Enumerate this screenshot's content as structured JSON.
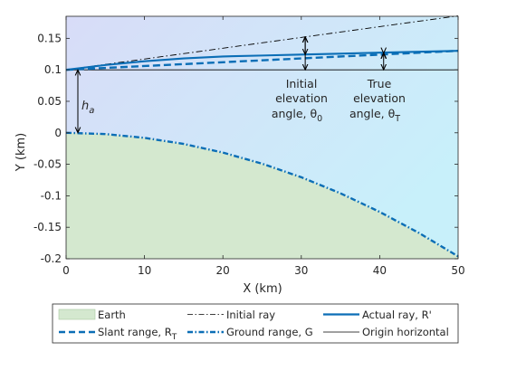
{
  "chart_data": {
    "type": "line",
    "xlabel": "X (km)",
    "ylabel": "Y (km)",
    "xlim": [
      0,
      50
    ],
    "ylim": [
      -0.2,
      0.185
    ],
    "xticks": [
      "0",
      "10",
      "20",
      "30",
      "40",
      "50"
    ],
    "yticks": [
      "0.15",
      "0.1",
      "0.05",
      "0",
      "-0.05",
      "-0.1",
      "-0.15",
      "-0.2"
    ],
    "grid": false,
    "background_gradient": [
      "#d8dcf8",
      "#c8f0fa"
    ],
    "series": [
      {
        "name": "Earth",
        "style": "filled-area",
        "color": "#d4e8cf",
        "x": [
          0,
          5,
          10,
          15,
          20,
          25,
          30,
          35,
          40,
          45,
          50
        ],
        "y": [
          0,
          -0.002,
          -0.008,
          -0.0177,
          -0.0314,
          -0.049,
          -0.0706,
          -0.0961,
          -0.1256,
          -0.159,
          -0.1962
        ]
      },
      {
        "name": "Initial ray",
        "style": "dash-dot",
        "color": "#000000",
        "x": [
          0,
          50
        ],
        "y": [
          0.1,
          0.1857
        ]
      },
      {
        "name": "Actual ray, R'",
        "style": "solid-thick",
        "color": "#0b6eb6",
        "x": [
          0,
          5,
          10,
          15,
          20,
          25,
          30,
          35,
          40,
          45,
          50
        ],
        "y": [
          0.1,
          0.1076,
          0.1136,
          0.1181,
          0.1212,
          0.1227,
          0.1242,
          0.1257,
          0.1272,
          0.1287,
          0.1302
        ]
      },
      {
        "name": "Slant range, R_T",
        "style": "dashed-thick",
        "color": "#0b6eb6",
        "x": [
          0,
          50
        ],
        "y": [
          0.1,
          0.1302
        ]
      },
      {
        "name": "Ground range, G",
        "style": "dash-dot-thick",
        "color": "#0b6eb6",
        "x": [
          0,
          5,
          10,
          15,
          20,
          25,
          30,
          35,
          40,
          45,
          50
        ],
        "y": [
          0,
          -0.002,
          -0.008,
          -0.0177,
          -0.0314,
          -0.049,
          -0.0706,
          -0.0961,
          -0.1256,
          -0.159,
          -0.1962
        ]
      },
      {
        "name": "Origin horizontal",
        "style": "solid-thin",
        "color": "#000000",
        "x": [
          0,
          50
        ],
        "y": [
          0.1,
          0.1
        ]
      }
    ],
    "annotations": [
      {
        "kind": "arrow",
        "x": 1.5,
        "y1": 0,
        "y2": 0.1,
        "label": "h_a"
      },
      {
        "kind": "arrow",
        "x": 30.5,
        "y1": 0.1,
        "y2": 0.1524
      },
      {
        "kind": "arrow",
        "x": 40.5,
        "y1": 0.1,
        "y2": 0.1263
      },
      {
        "kind": "arrow",
        "x": 30.5,
        "y1": 0.1524,
        "y2": 0.1242
      },
      {
        "kind": "arrow",
        "x": 40.5,
        "y1": 0.1263,
        "y2": 0.1272
      }
    ],
    "text_annotations": {
      "h_a": {
        "main": "h",
        "sub": "a"
      },
      "initial_angle": {
        "line1": "Initial",
        "line2": "elevation",
        "line3_main": "angle, θ",
        "line3_sub": "0"
      },
      "true_angle": {
        "line1": "True",
        "line2": "elevation",
        "line3_main": "angle, θ",
        "line3_sub": "T"
      }
    },
    "legend": {
      "placement": "bottom-outside",
      "entries": [
        {
          "key": "earth",
          "main": "Earth",
          "sub": ""
        },
        {
          "key": "initial",
          "main": "Initial ray",
          "sub": ""
        },
        {
          "key": "actual",
          "main": "Actual ray, R'",
          "sub": ""
        },
        {
          "key": "slant",
          "main": "Slant range, R",
          "sub": "T"
        },
        {
          "key": "ground",
          "main": "Ground range, G",
          "sub": ""
        },
        {
          "key": "horizontal",
          "main": "Origin horizontal",
          "sub": ""
        }
      ]
    }
  }
}
